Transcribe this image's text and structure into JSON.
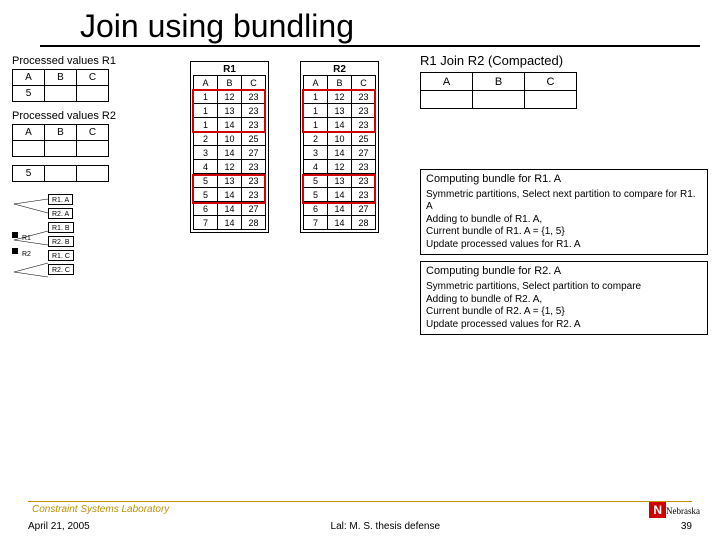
{
  "title": "Join using bundling",
  "processed_r1_label": "Processed values R1",
  "processed_r2_label": "Processed values R2",
  "small_table_headers": [
    "A",
    "B",
    "C"
  ],
  "small_table_val": "5",
  "r1": {
    "title": "R1",
    "cols": [
      "A",
      "B",
      "C"
    ],
    "rows": [
      [
        "1",
        "12",
        "23"
      ],
      [
        "1",
        "13",
        "23"
      ],
      [
        "1",
        "14",
        "23"
      ],
      [
        "2",
        "10",
        "25"
      ],
      [
        "3",
        "14",
        "27"
      ],
      [
        "4",
        "12",
        "23"
      ],
      [
        "5",
        "13",
        "23"
      ],
      [
        "5",
        "14",
        "23"
      ],
      [
        "6",
        "14",
        "27"
      ],
      [
        "7",
        "14",
        "28"
      ]
    ]
  },
  "r2": {
    "title": "R2",
    "cols": [
      "A",
      "B",
      "C"
    ],
    "rows": [
      [
        "1",
        "12",
        "23"
      ],
      [
        "1",
        "13",
        "23"
      ],
      [
        "1",
        "14",
        "23"
      ],
      [
        "2",
        "10",
        "25"
      ],
      [
        "3",
        "14",
        "27"
      ],
      [
        "4",
        "12",
        "23"
      ],
      [
        "5",
        "13",
        "23"
      ],
      [
        "5",
        "14",
        "23"
      ],
      [
        "6",
        "14",
        "27"
      ],
      [
        "7",
        "14",
        "28"
      ]
    ]
  },
  "join_title_parts": [
    "R1",
    " Join ",
    "R2",
    " (Compacted)"
  ],
  "join_headers": [
    "A",
    "B",
    "C"
  ],
  "bundle1": {
    "title": "Computing bundle for R1. A",
    "l1": "Select next partition to compare for R1. A",
    "l1b": "Symmetric partitions,",
    "l2": "Adding to bundle of R1. A,",
    "l3": "Current bundle of R1. A = {1, 5}",
    "l4": "Update processed values for R1. A"
  },
  "bundle2": {
    "title": "Computing bundle for R2. A",
    "l1": "Select partition to compare",
    "l1b": "Symmetric partitions,",
    "l2": "Adding to bundle of R2. A,",
    "l3": "Current bundle of R2. A = {1, 5}",
    "l4": "Update processed values for R2. A"
  },
  "ptree_labels": [
    "R1. A",
    "R2. A",
    "R1. B",
    "R2. B",
    "R1. C",
    "R2. C"
  ],
  "ptree_side": [
    "R1",
    "R2"
  ],
  "footer_lab": "Constraint Systems Laboratory",
  "footer_date": "April 21, 2005",
  "footer_mid": "Lal: M. S. thesis defense",
  "footer_page": "39",
  "nebraska": "Nebraska",
  "colors": {
    "red": "#d00000",
    "gold": "#c09000"
  }
}
